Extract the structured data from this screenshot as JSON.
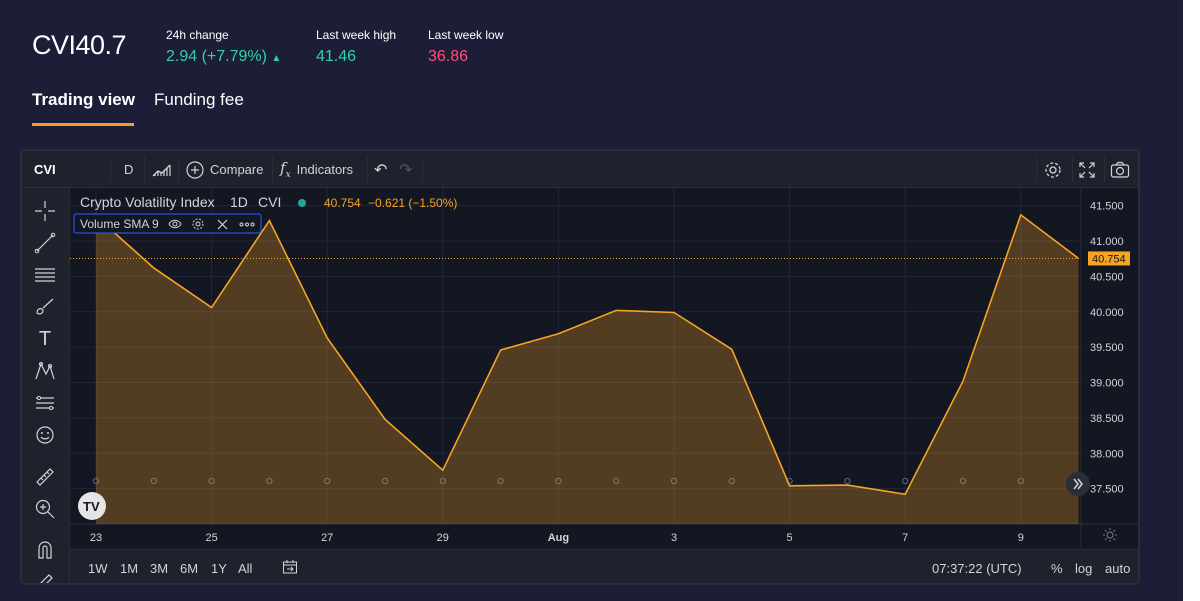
{
  "header": {
    "symbol": "CVI",
    "price": "40.7",
    "change": {
      "label": "24h change",
      "value": "2.94 (+7.79%)",
      "arrow": "▲",
      "color": "#2fd3a4"
    },
    "week_high": {
      "label": "Last week high",
      "value": "41.46",
      "color": "#2fd3a4"
    },
    "week_low": {
      "label": "Last week low",
      "value": "36.86",
      "color": "#ff4f7a"
    }
  },
  "tabs": [
    {
      "label": "Trading view",
      "active": true
    },
    {
      "label": "Funding fee",
      "active": false
    }
  ],
  "toolbar": {
    "symbol": "CVI",
    "interval": "D",
    "compare_label": "Compare",
    "indicators_label": "Indicators",
    "icons": [
      "bar-style-icon",
      "compare-plus-icon",
      "fx-icon",
      "undo-icon",
      "redo-icon",
      "settings-icon",
      "fullscreen-icon",
      "camera-icon"
    ]
  },
  "legend": {
    "name": "Crypto Volatility Index",
    "interval": "1D",
    "symbol": "CVI",
    "last": "40.754",
    "change": "−0.621 (−1.50%)",
    "study": "Volume SMA 9"
  },
  "bottom": {
    "ranges": [
      "1W",
      "1M",
      "3M",
      "6M",
      "1Y",
      "All"
    ],
    "time": "07:37:22 (UTC)",
    "percent": "%",
    "log": "log",
    "auto": "auto"
  },
  "colors": {
    "line": "#f7a325",
    "accent": "#ff9a1f",
    "background": "#1e1d37"
  },
  "chart_data": {
    "type": "area",
    "title": "Crypto Volatility Index",
    "x": [
      "Jul 23",
      "Jul 24",
      "Jul 25",
      "Jul 26",
      "Jul 27",
      "Jul 28",
      "Jul 29",
      "Jul 30",
      "Jul 31",
      "Aug 1",
      "Aug 2",
      "Aug 3",
      "Aug 4",
      "Aug 5",
      "Aug 6",
      "Aug 7",
      "Aug 8",
      "Aug 9"
    ],
    "series": [
      {
        "name": "CVI",
        "values": [
          41.35,
          40.62,
          40.06,
          41.29,
          39.63,
          38.48,
          37.76,
          39.46,
          39.69,
          40.02,
          39.99,
          39.47,
          37.54,
          37.55,
          37.42,
          39.02,
          41.37,
          40.754
        ]
      }
    ],
    "x_tick_labels": [
      "23",
      "25",
      "27",
      "29",
      "Aug",
      "3",
      "5",
      "7",
      "9"
    ],
    "y_tick_labels": [
      "41.500",
      "41.000",
      "40.500",
      "40.000",
      "39.500",
      "39.000",
      "38.500",
      "38.000",
      "37.500"
    ],
    "ylim": [
      37.0,
      41.75
    ],
    "last_value_label": "40.754",
    "grid": true,
    "legend_position": "top-left"
  }
}
